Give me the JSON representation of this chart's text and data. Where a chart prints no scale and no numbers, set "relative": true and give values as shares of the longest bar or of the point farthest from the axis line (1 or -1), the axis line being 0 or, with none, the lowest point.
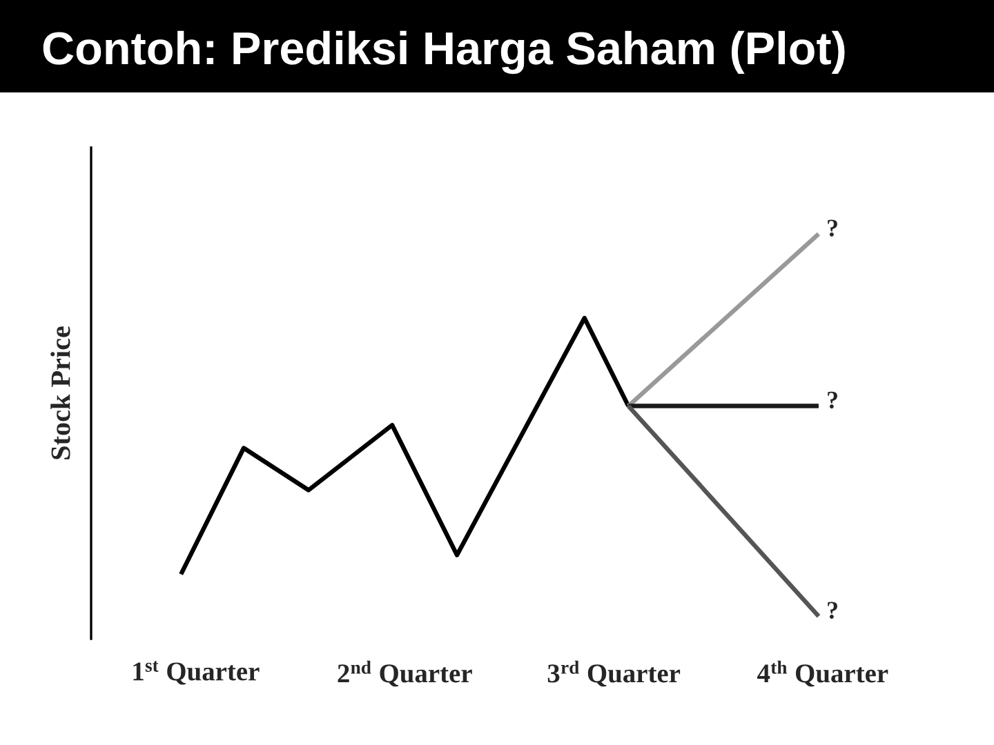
{
  "chart_data": {
    "type": "line",
    "title": "Contoh: Prediksi Harga Saham (Plot)",
    "ylabel": "Stock Price",
    "relative": true,
    "tick_labels": "x",
    "xlim": [
      0.5,
      4
    ],
    "xticks": [
      {
        "value": 1,
        "label": "1$^{st}$ Quarter"
      },
      {
        "value": 2,
        "label": "2$^{nd}$ Quarter"
      },
      {
        "value": 3,
        "label": "3$^{rd}$ Quarter"
      },
      {
        "value": 4,
        "label": "4$^{th}$ Quarter"
      }
    ],
    "series": [
      {
        "color": "#000000",
        "x": [
          0.93,
          1.23,
          1.54,
          1.94,
          2.25,
          2.86,
          3.07
        ],
        "values": [
          0.11,
          0.44,
          0.33,
          0.5,
          0.16,
          0.78,
          0.55
        ]
      },
      {
        "color": "#999999",
        "x": [
          3.07,
          3.98
        ],
        "values": [
          0.55,
          1
        ]
      },
      {
        "color": "#1a1a1a",
        "x": [
          3.07,
          3.98
        ],
        "values": [
          0.55,
          0.55
        ]
      },
      {
        "color": "#555555",
        "x": [
          3.07,
          3.98
        ],
        "values": [
          0.55,
          0
        ]
      }
    ],
    "annotations": [
      "?",
      "?",
      "?"
    ]
  }
}
